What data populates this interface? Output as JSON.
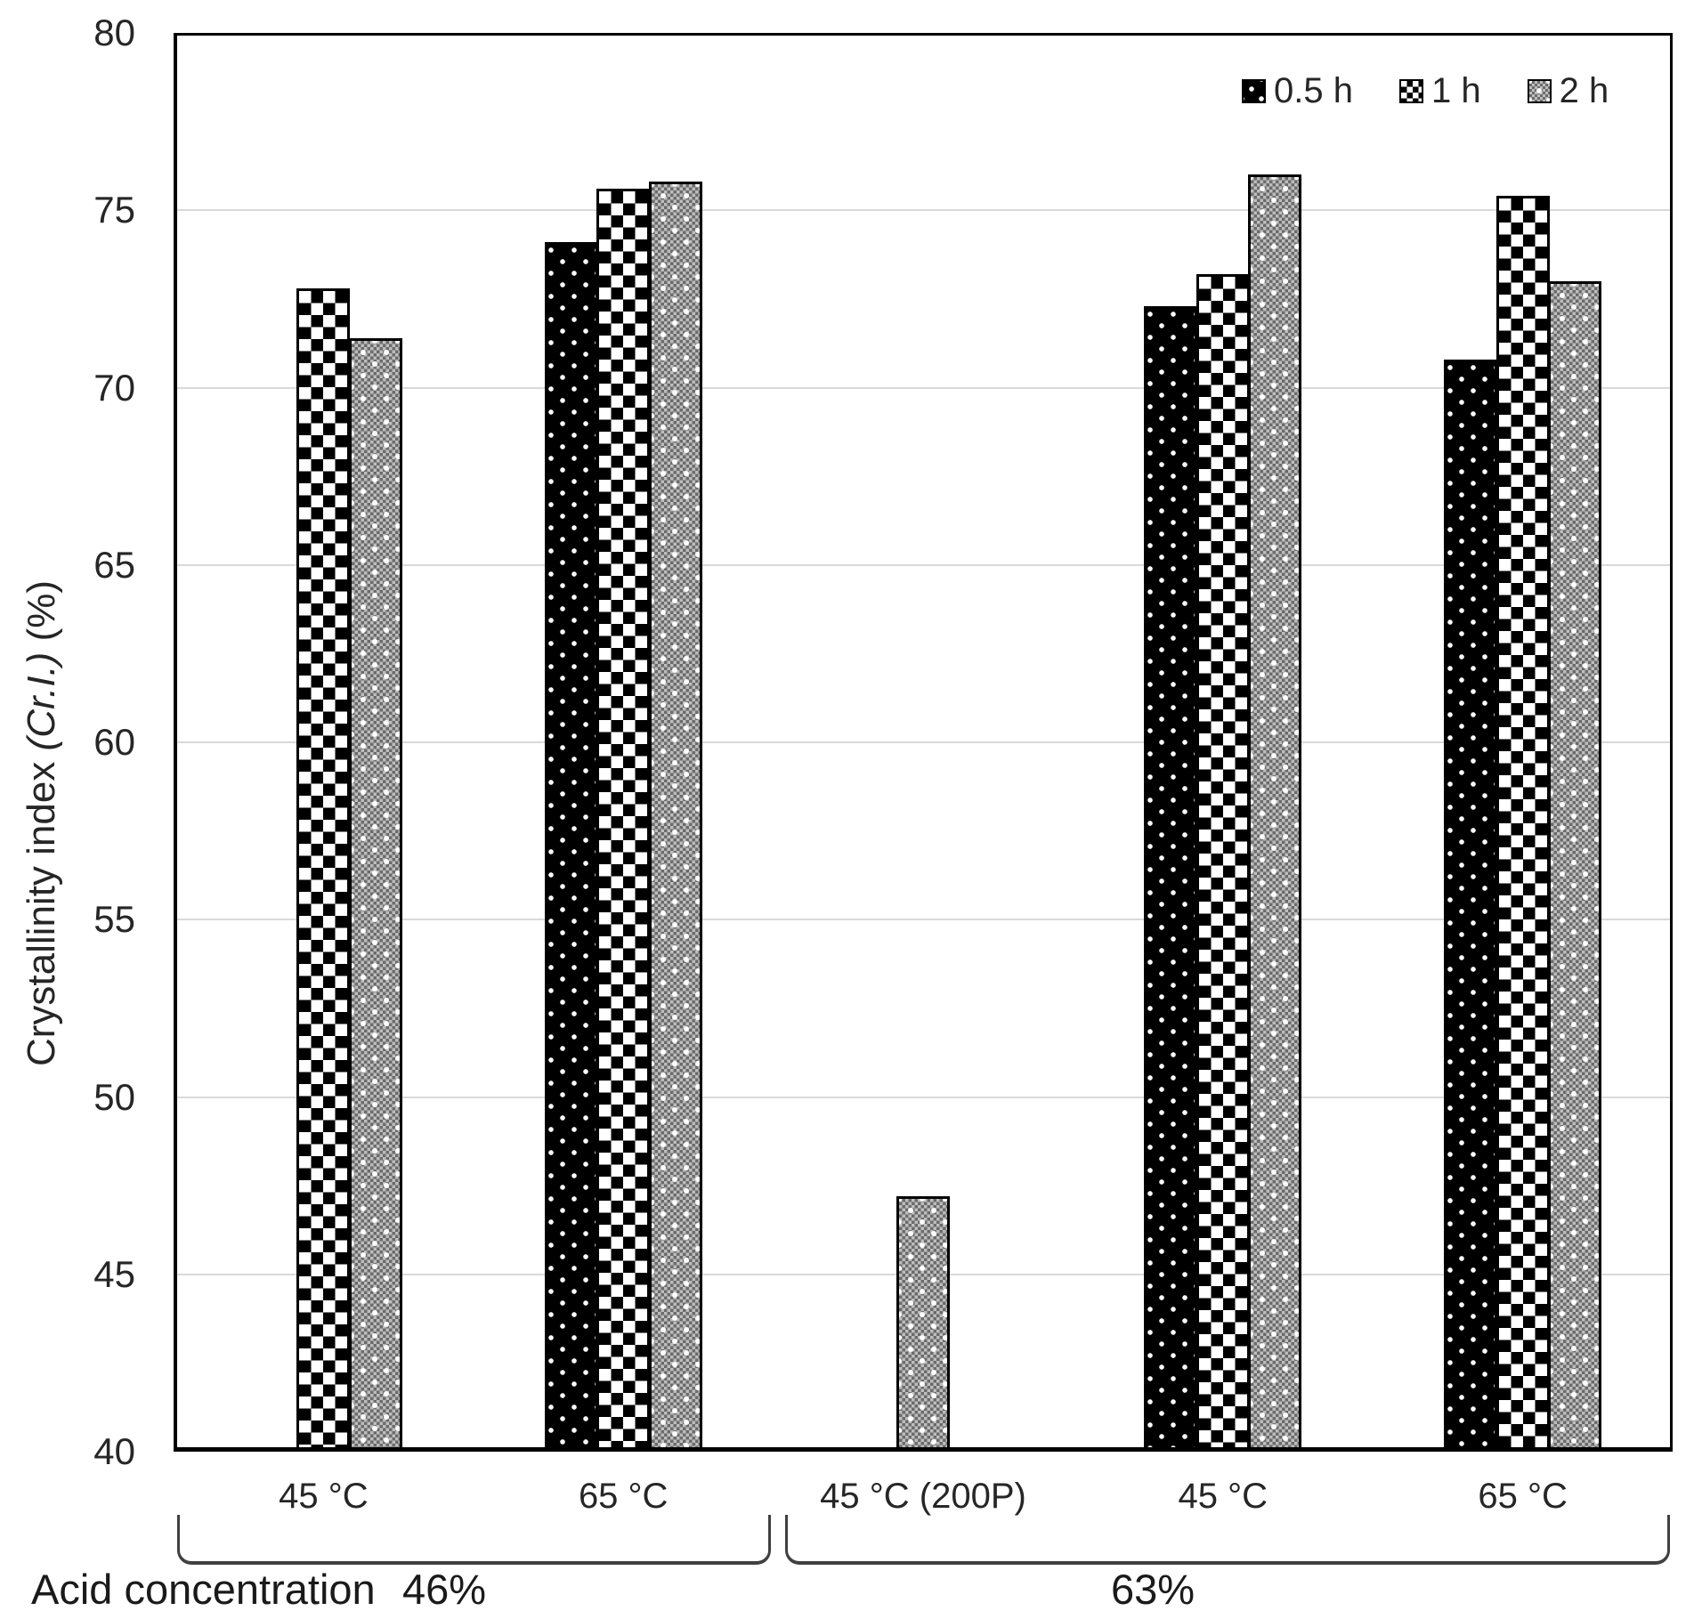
{
  "colors": {
    "bar_outline": "#000000",
    "gridline": "#d9d9d9",
    "gray_fill": "#a6a6a6",
    "text": "#262626"
  },
  "y_axis_title": {
    "pre": "Crystallinity index ",
    "italic": "(Cr.I.)",
    "post": " (%)"
  },
  "annotations": {
    "acid_label": "Acid concentration",
    "conc46": "46%",
    "conc63": "63%"
  },
  "chart_data": {
    "type": "bar",
    "title": "",
    "xlabel": "",
    "ylabel": "Crystallinity index (Cr.I.) (%)",
    "ylim": [
      40,
      80
    ],
    "yticks": [
      40,
      45,
      50,
      55,
      60,
      65,
      70,
      75,
      80
    ],
    "grid": "horizontal",
    "legend_position": "top-right",
    "legend": [
      {
        "name": "0.5 h",
        "pattern": "p05"
      },
      {
        "name": "1 h",
        "pattern": "p1"
      },
      {
        "name": "2 h",
        "pattern": "p2"
      }
    ],
    "series_names": [
      "0.5 h",
      "1 h",
      "2 h"
    ],
    "categories": [
      "45 °C",
      "65 °C",
      "45 °C (200P)",
      "45 °C",
      "65 °C"
    ],
    "acid_concentration_groups": [
      {
        "label": "46%",
        "categories": [
          "45 °C",
          "65 °C"
        ]
      },
      {
        "label": "63%",
        "categories": [
          "45 °C (200P)",
          "45 °C",
          "65 °C"
        ]
      }
    ],
    "groups": [
      {
        "label": "45 °C",
        "acid": "46%",
        "bars": [
          {
            "series": "1 h",
            "pattern": "p1",
            "value": 72.8,
            "slot": 1
          },
          {
            "series": "2 h",
            "pattern": "p2",
            "value": 71.4,
            "slot": 2
          }
        ]
      },
      {
        "label": "65 °C",
        "acid": "46%",
        "bars": [
          {
            "series": "0.5 h",
            "pattern": "p05",
            "value": 74.1,
            "slot": 0
          },
          {
            "series": "1 h",
            "pattern": "p1",
            "value": 75.6,
            "slot": 1
          },
          {
            "series": "2 h",
            "pattern": "p2",
            "value": 75.8,
            "slot": 2
          }
        ]
      },
      {
        "label": "45 °C (200P)",
        "acid": "63%",
        "bars": [
          {
            "series": "2 h",
            "pattern": "p2",
            "value": 47.2,
            "slot": 1
          }
        ]
      },
      {
        "label": "45 °C",
        "acid": "63%",
        "bars": [
          {
            "series": "0.5 h",
            "pattern": "p05",
            "value": 72.3,
            "slot": 0
          },
          {
            "series": "1 h",
            "pattern": "p1",
            "value": 73.2,
            "slot": 1
          },
          {
            "series": "2 h",
            "pattern": "p2",
            "value": 76.0,
            "slot": 2
          }
        ]
      },
      {
        "label": "65 °C",
        "acid": "63%",
        "bars": [
          {
            "series": "0.5 h",
            "pattern": "p05",
            "value": 70.8,
            "slot": 0
          },
          {
            "series": "1 h",
            "pattern": "p1",
            "value": 75.4,
            "slot": 1
          },
          {
            "series": "2 h",
            "pattern": "p2",
            "value": 73.0,
            "slot": 2
          }
        ]
      }
    ]
  }
}
